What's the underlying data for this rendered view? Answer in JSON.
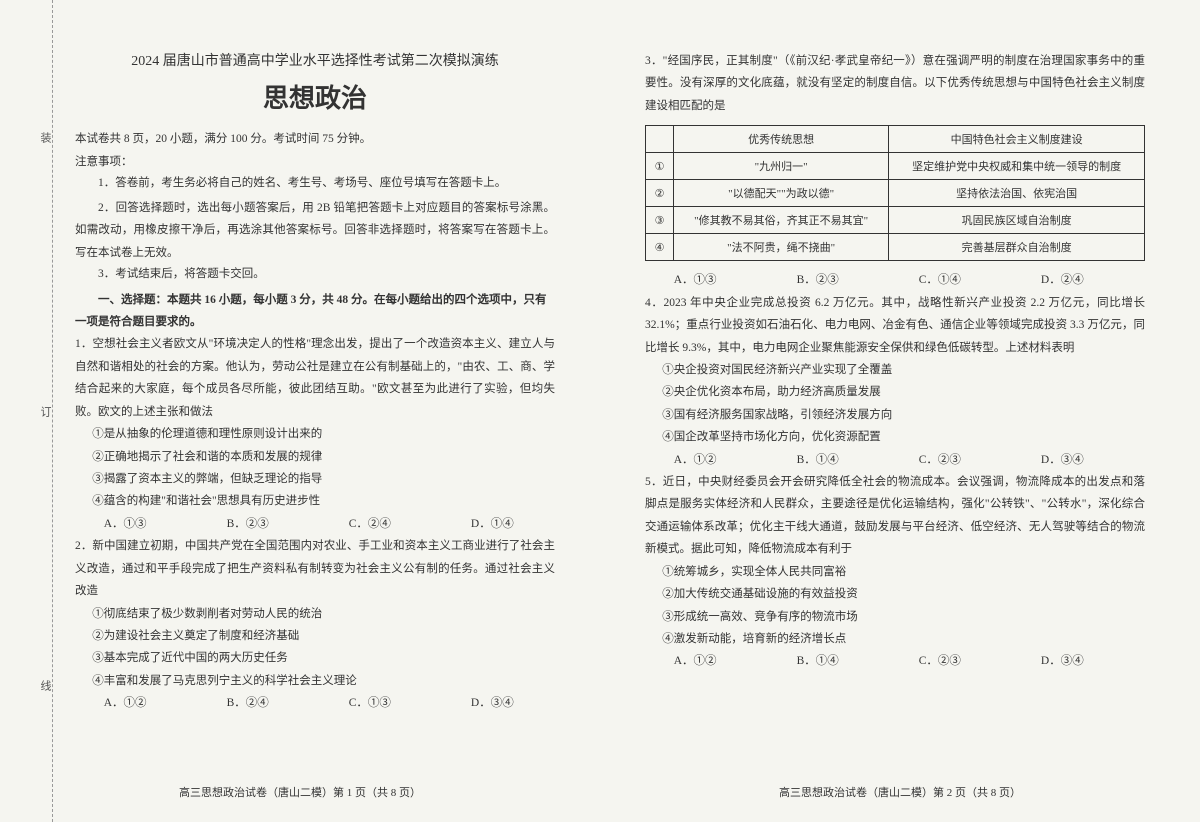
{
  "header": {
    "title": "2024 届唐山市普通高中学业水平选择性考试第二次模拟演练",
    "subject": "思想政治",
    "examInfo": "本试卷共 8 页，20 小题，满分 100 分。考试时间 75 分钟。",
    "noticeLabel": "注意事项：",
    "notices": [
      "1．答卷前，考生务必将自己的姓名、考生号、考场号、座位号填写在答题卡上。",
      "2．回答选择题时，选出每小题答案后，用 2B 铅笔把答题卡上对应题目的答案标号涂黑。如需改动，用橡皮擦干净后，再选涂其他答案标号。回答非选择题时，将答案写在答题卡上。写在本试卷上无效。",
      "3．考试结束后，将答题卡交回。"
    ]
  },
  "sectionTitle": "一、选择题：本题共 16 小题，每小题 3 分，共 48 分。在每小题给出的四个选项中，只有一项是符合题目要求的。",
  "q1": {
    "stem": "1．空想社会主义者欧文从\"环境决定人的性格\"理念出发，提出了一个改造资本主义、建立人与自然和谐相处的社会的方案。他认为，劳动公社是建立在公有制基础上的，\"由农、工、商、学结合起来的大家庭，每个成员各尽所能，彼此团结互助。\"欧文甚至为此进行了实验，但均失败。欧文的上述主张和做法",
    "opts": [
      "①是从抽象的伦理道德和理性原则设计出来的",
      "②正确地揭示了社会和谐的本质和发展的规律",
      "③揭露了资本主义的弊端，但缺乏理论的指导",
      "④蕴含的构建\"和谐社会\"思想具有历史进步性"
    ],
    "choices": [
      "A．①③",
      "B．②③",
      "C．②④",
      "D．①④"
    ]
  },
  "q2": {
    "stem": "2．新中国建立初期，中国共产党在全国范围内对农业、手工业和资本主义工商业进行了社会主义改造，通过和平手段完成了把生产资料私有制转变为社会主义公有制的任务。通过社会主义改造",
    "opts": [
      "①彻底结束了极少数剥削者对劳动人民的统治",
      "②为建设社会主义奠定了制度和经济基础",
      "③基本完成了近代中国的两大历史任务",
      "④丰富和发展了马克思列宁主义的科学社会主义理论"
    ],
    "choices": [
      "A．①②",
      "B．②④",
      "C．①③",
      "D．③④"
    ]
  },
  "q3": {
    "stem": "3．\"经国序民，正其制度\"（《前汉纪·孝武皇帝纪一》）意在强调严明的制度在治理国家事务中的重要性。没有深厚的文化底蕴，就没有坚定的制度自信。以下优秀传统思想与中国特色社会主义制度建设相匹配的是",
    "choices": [
      "A．①③",
      "B．②③",
      "C．①④",
      "D．②④"
    ]
  },
  "table": {
    "headers": [
      "",
      "优秀传统思想",
      "中国特色社会主义制度建设"
    ],
    "rows": [
      [
        "①",
        "\"九州归一\"",
        "坚定维护党中央权威和集中统一领导的制度"
      ],
      [
        "②",
        "\"以德配天\"\"为政以德\"",
        "坚持依法治国、依宪治国"
      ],
      [
        "③",
        "\"修其教不易其俗，齐其正不易其宜\"",
        "巩固民族区域自治制度"
      ],
      [
        "④",
        "\"法不阿贵，绳不挠曲\"",
        "完善基层群众自治制度"
      ]
    ]
  },
  "q4": {
    "stem": "4．2023 年中央企业完成总投资 6.2 万亿元。其中，战略性新兴产业投资 2.2 万亿元，同比增长 32.1%；重点行业投资如石油石化、电力电网、冶金有色、通信企业等领域完成投资 3.3 万亿元，同比增长 9.3%，其中，电力电网企业聚焦能源安全保供和绿色低碳转型。上述材料表明",
    "opts": [
      "①央企投资对国民经济新兴产业实现了全覆盖",
      "②央企优化资本布局，助力经济高质量发展",
      "③国有经济服务国家战略，引领经济发展方向",
      "④国企改革坚持市场化方向，优化资源配置"
    ],
    "choices": [
      "A．①②",
      "B．①④",
      "C．②③",
      "D．③④"
    ]
  },
  "q5": {
    "stem": "5．近日，中央财经委员会开会研究降低全社会的物流成本。会议强调，物流降成本的出发点和落脚点是服务实体经济和人民群众，主要途径是优化运输结构，强化\"公转铁\"、\"公转水\"，深化综合交通运输体系改革；优化主干线大通道，鼓励发展与平台经济、低空经济、无人驾驶等结合的物流新模式。据此可知，降低物流成本有利于",
    "opts": [
      "①统筹城乡，实现全体人民共同富裕",
      "②加大传统交通基础设施的有效益投资",
      "③形成统一高效、竞争有序的物流市场",
      "④激发新动能，培育新的经济增长点"
    ],
    "choices": [
      "A．①②",
      "B．①④",
      "C．②③",
      "D．③④"
    ]
  },
  "footer": {
    "left": "高三思想政治试卷（唐山二模）第 1 页（共 8 页）",
    "right": "高三思想政治试卷（唐山二模）第 2 页（共 8 页）"
  },
  "binding": [
    "装",
    "订",
    "线"
  ]
}
